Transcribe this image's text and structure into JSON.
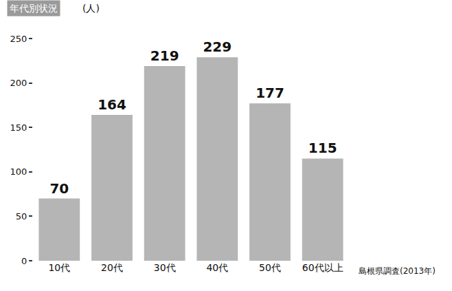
{
  "chart_data": {
    "type": "bar",
    "title": "年代別状況",
    "ylabel": "(人)",
    "categories": [
      "10代",
      "20代",
      "30代",
      "40代",
      "50代",
      "60代以上"
    ],
    "values": [
      70,
      164,
      219,
      229,
      177,
      115
    ],
    "color": "#b5b5b5",
    "ylim": [
      0,
      250
    ],
    "yticks": [
      0,
      50,
      100,
      150,
      200,
      250
    ],
    "grid": false,
    "data_labels": true,
    "annotations": [
      "島根県調査(2013年)"
    ]
  }
}
